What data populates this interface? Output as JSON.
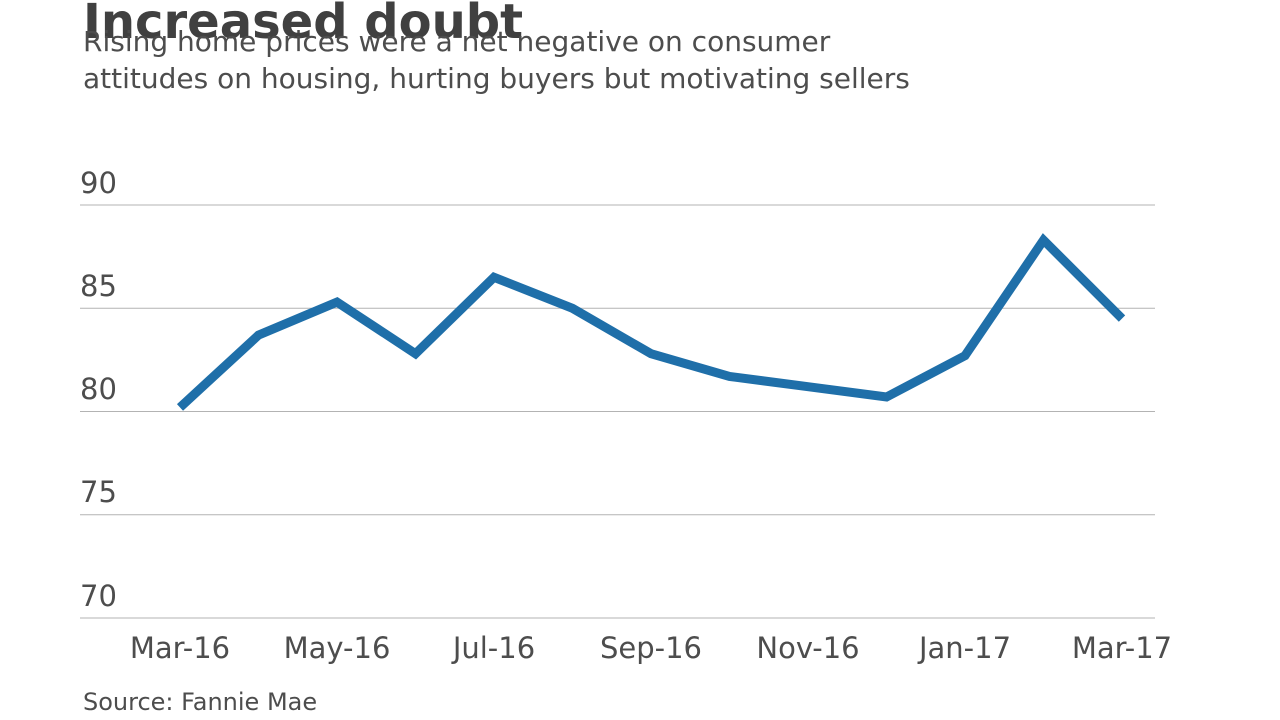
{
  "title": "Increased doubt",
  "subtitle_lines": [
    "Rising home prices were a net negative on consumer",
    "attitudes on housing, hurting buyers but motivating sellers"
  ],
  "source": "Source: Fannie Mae",
  "chart_data": {
    "type": "line",
    "title": "Increased doubt",
    "subtitle": "Rising home prices were a net negative on consumer attitudes on housing, hurting buyers but motivating sellers",
    "source": "Source: Fannie Mae",
    "x": [
      "Mar-16",
      "Apr-16",
      "May-16",
      "Jun-16",
      "Jul-16",
      "Aug-16",
      "Sep-16",
      "Oct-16",
      "Nov-16",
      "Dec-16",
      "Jan-17",
      "Feb-17",
      "Mar-17"
    ],
    "values": [
      80.2,
      83.7,
      85.3,
      82.8,
      86.5,
      85.0,
      82.8,
      81.7,
      81.2,
      80.7,
      82.7,
      88.3,
      84.5
    ],
    "x_tick_labels": [
      "Mar-16",
      "May-16",
      "Jul-16",
      "Sep-16",
      "Nov-16",
      "Jan-17",
      "Mar-17"
    ],
    "y_ticks": [
      90,
      85,
      80,
      75,
      70
    ],
    "ylim": [
      70,
      90
    ],
    "grid": true,
    "legend": "none",
    "line_color": "#1F6FA9",
    "grid_color": "#B3B3B3"
  }
}
